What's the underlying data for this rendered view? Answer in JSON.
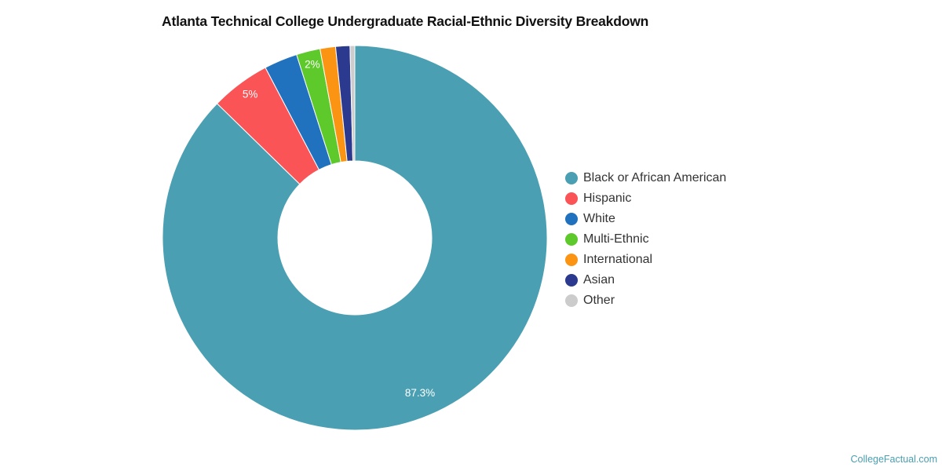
{
  "title": "Atlanta Technical College Undergraduate Racial-Ethnic Diversity Breakdown",
  "credit": "CollegeFactual.com",
  "chart_data": {
    "type": "pie",
    "variant": "donut",
    "title": "Atlanta Technical College Undergraduate Racial-Ethnic Diversity Breakdown",
    "legend_position": "right",
    "categories": [
      "Black or African American",
      "Hispanic",
      "White",
      "Multi-Ethnic",
      "International",
      "Asian",
      "Other"
    ],
    "values": [
      87.3,
      5.0,
      2.8,
      2.0,
      1.3,
      1.2,
      0.4
    ],
    "colors": [
      "#4aa0b2",
      "#fb5457",
      "#2072be",
      "#5ec92b",
      "#fc9413",
      "#2b3a8e",
      "#cccccc"
    ],
    "data_labels": [
      {
        "category": "Black or African American",
        "text": "87.3%"
      },
      {
        "category": "Hispanic",
        "text": "5%"
      },
      {
        "category": "Multi-Ethnic",
        "text": "2%"
      }
    ]
  },
  "legend": {
    "items": [
      {
        "label": "Black or African American",
        "color": "#4aa0b2"
      },
      {
        "label": "Hispanic",
        "color": "#fb5457"
      },
      {
        "label": "White",
        "color": "#2072be"
      },
      {
        "label": "Multi-Ethnic",
        "color": "#5ec92b"
      },
      {
        "label": "International",
        "color": "#fc9413"
      },
      {
        "label": "Asian",
        "color": "#2b3a8e"
      },
      {
        "label": "Other",
        "color": "#cccccc"
      }
    ]
  }
}
